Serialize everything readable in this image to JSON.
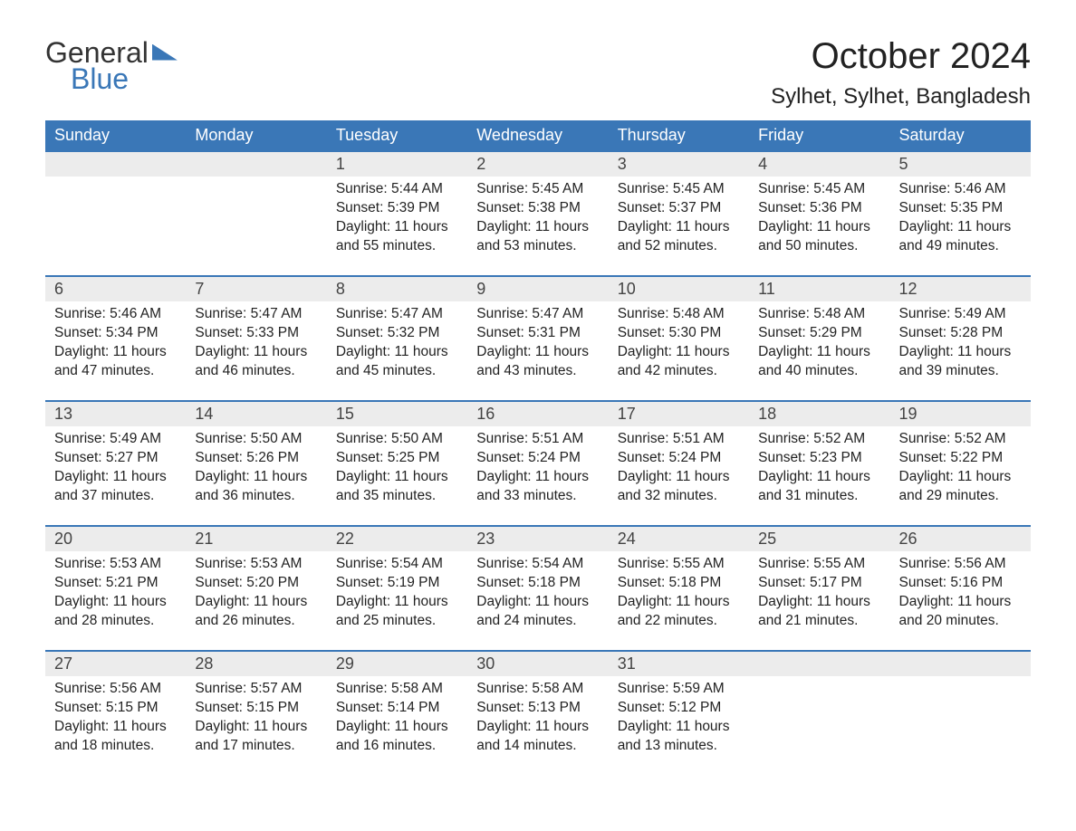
{
  "brand": {
    "word1": "General",
    "word2": "Blue",
    "accent_color": "#3a77b7"
  },
  "header": {
    "month_title": "October 2024",
    "location": "Sylhet, Sylhet, Bangladesh"
  },
  "calendar": {
    "day_header_bg": "#3a77b7",
    "day_header_fg": "#ffffff",
    "daynum_bg": "#ececec",
    "row_divider_color": "#3a77b7",
    "body_bg": "#ffffff",
    "text_color": "#222222",
    "font_family": "Arial",
    "header_fontsize": 18,
    "daynum_fontsize": 18,
    "body_fontsize": 15.5,
    "columns": [
      "Sunday",
      "Monday",
      "Tuesday",
      "Wednesday",
      "Thursday",
      "Friday",
      "Saturday"
    ],
    "weeks": [
      [
        null,
        null,
        {
          "n": "1",
          "sunrise": "5:44 AM",
          "sunset": "5:39 PM",
          "daylight": "11 hours and 55 minutes."
        },
        {
          "n": "2",
          "sunrise": "5:45 AM",
          "sunset": "5:38 PM",
          "daylight": "11 hours and 53 minutes."
        },
        {
          "n": "3",
          "sunrise": "5:45 AM",
          "sunset": "5:37 PM",
          "daylight": "11 hours and 52 minutes."
        },
        {
          "n": "4",
          "sunrise": "5:45 AM",
          "sunset": "5:36 PM",
          "daylight": "11 hours and 50 minutes."
        },
        {
          "n": "5",
          "sunrise": "5:46 AM",
          "sunset": "5:35 PM",
          "daylight": "11 hours and 49 minutes."
        }
      ],
      [
        {
          "n": "6",
          "sunrise": "5:46 AM",
          "sunset": "5:34 PM",
          "daylight": "11 hours and 47 minutes."
        },
        {
          "n": "7",
          "sunrise": "5:47 AM",
          "sunset": "5:33 PM",
          "daylight": "11 hours and 46 minutes."
        },
        {
          "n": "8",
          "sunrise": "5:47 AM",
          "sunset": "5:32 PM",
          "daylight": "11 hours and 45 minutes."
        },
        {
          "n": "9",
          "sunrise": "5:47 AM",
          "sunset": "5:31 PM",
          "daylight": "11 hours and 43 minutes."
        },
        {
          "n": "10",
          "sunrise": "5:48 AM",
          "sunset": "5:30 PM",
          "daylight": "11 hours and 42 minutes."
        },
        {
          "n": "11",
          "sunrise": "5:48 AM",
          "sunset": "5:29 PM",
          "daylight": "11 hours and 40 minutes."
        },
        {
          "n": "12",
          "sunrise": "5:49 AM",
          "sunset": "5:28 PM",
          "daylight": "11 hours and 39 minutes."
        }
      ],
      [
        {
          "n": "13",
          "sunrise": "5:49 AM",
          "sunset": "5:27 PM",
          "daylight": "11 hours and 37 minutes."
        },
        {
          "n": "14",
          "sunrise": "5:50 AM",
          "sunset": "5:26 PM",
          "daylight": "11 hours and 36 minutes."
        },
        {
          "n": "15",
          "sunrise": "5:50 AM",
          "sunset": "5:25 PM",
          "daylight": "11 hours and 35 minutes."
        },
        {
          "n": "16",
          "sunrise": "5:51 AM",
          "sunset": "5:24 PM",
          "daylight": "11 hours and 33 minutes."
        },
        {
          "n": "17",
          "sunrise": "5:51 AM",
          "sunset": "5:24 PM",
          "daylight": "11 hours and 32 minutes."
        },
        {
          "n": "18",
          "sunrise": "5:52 AM",
          "sunset": "5:23 PM",
          "daylight": "11 hours and 31 minutes."
        },
        {
          "n": "19",
          "sunrise": "5:52 AM",
          "sunset": "5:22 PM",
          "daylight": "11 hours and 29 minutes."
        }
      ],
      [
        {
          "n": "20",
          "sunrise": "5:53 AM",
          "sunset": "5:21 PM",
          "daylight": "11 hours and 28 minutes."
        },
        {
          "n": "21",
          "sunrise": "5:53 AM",
          "sunset": "5:20 PM",
          "daylight": "11 hours and 26 minutes."
        },
        {
          "n": "22",
          "sunrise": "5:54 AM",
          "sunset": "5:19 PM",
          "daylight": "11 hours and 25 minutes."
        },
        {
          "n": "23",
          "sunrise": "5:54 AM",
          "sunset": "5:18 PM",
          "daylight": "11 hours and 24 minutes."
        },
        {
          "n": "24",
          "sunrise": "5:55 AM",
          "sunset": "5:18 PM",
          "daylight": "11 hours and 22 minutes."
        },
        {
          "n": "25",
          "sunrise": "5:55 AM",
          "sunset": "5:17 PM",
          "daylight": "11 hours and 21 minutes."
        },
        {
          "n": "26",
          "sunrise": "5:56 AM",
          "sunset": "5:16 PM",
          "daylight": "11 hours and 20 minutes."
        }
      ],
      [
        {
          "n": "27",
          "sunrise": "5:56 AM",
          "sunset": "5:15 PM",
          "daylight": "11 hours and 18 minutes."
        },
        {
          "n": "28",
          "sunrise": "5:57 AM",
          "sunset": "5:15 PM",
          "daylight": "11 hours and 17 minutes."
        },
        {
          "n": "29",
          "sunrise": "5:58 AM",
          "sunset": "5:14 PM",
          "daylight": "11 hours and 16 minutes."
        },
        {
          "n": "30",
          "sunrise": "5:58 AM",
          "sunset": "5:13 PM",
          "daylight": "11 hours and 14 minutes."
        },
        {
          "n": "31",
          "sunrise": "5:59 AM",
          "sunset": "5:12 PM",
          "daylight": "11 hours and 13 minutes."
        },
        null,
        null
      ]
    ],
    "labels": {
      "sunrise": "Sunrise:",
      "sunset": "Sunset:",
      "daylight": "Daylight:"
    }
  }
}
